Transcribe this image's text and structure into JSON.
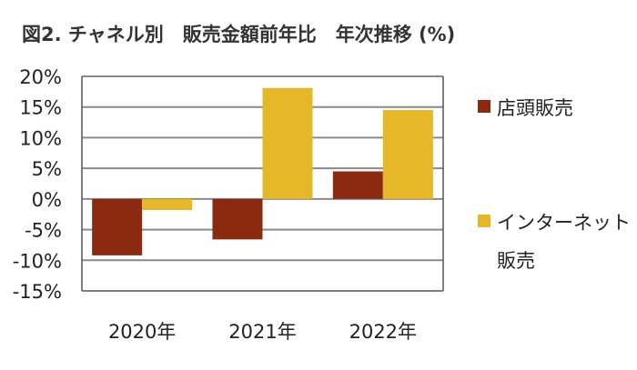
{
  "chart_data": {
    "type": "bar",
    "title": "図2. チャネル別　販売金額前年比　年次推移 (%)",
    "categories": [
      "2020年",
      "2021年",
      "2022年"
    ],
    "series": [
      {
        "name": "店頭販売",
        "color": "#8B2A10",
        "values": [
          -9.2,
          -6.6,
          4.5
        ]
      },
      {
        "name": "インターネット販売",
        "color": "#E6B728",
        "values": [
          -1.8,
          18.1,
          14.5
        ]
      }
    ],
    "ylim": [
      -15,
      20
    ],
    "yticks": [
      20,
      15,
      10,
      5,
      0,
      -5,
      -10,
      -15
    ],
    "ytick_labels": [
      "20%",
      "15%",
      "10%",
      "5%",
      "0%",
      "-5%",
      "-10%",
      "-15%"
    ],
    "grid": true,
    "legend": {
      "position": "right",
      "labels": [
        [
          "店頭販売"
        ],
        [
          "インターネット",
          "販売"
        ]
      ]
    }
  }
}
